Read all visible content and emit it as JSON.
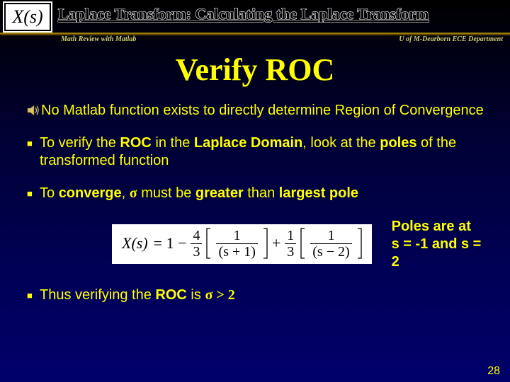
{
  "header": {
    "badge": "X(s)",
    "title": "Laplace Transform:  Calculating the Laplace Transform",
    "left_sub": "Math Review with Matlab",
    "right_sub": "U of M-Dearborn ECE Department"
  },
  "slide": {
    "title": "Verify ROC",
    "bullets": [
      {
        "icon": "sound",
        "html": "No Matlab function exists to directly determine Region of Convergence"
      },
      {
        "icon": "square",
        "html": "To verify the <b>ROC</b> in the <b>Laplace Domain</b>, look at the <b>poles</b> of the transformed function"
      },
      {
        "icon": "square",
        "html": "To <b>converge</b>, <b class='sigma'>σ</b> must be <b>greater</b> than <b>largest pole</b>"
      },
      {
        "icon": "square",
        "html": "Thus verifying the <b>ROC</b> is <b class='sigma'>σ > 2</b>"
      }
    ],
    "equation": {
      "lhs": "X(s)",
      "terms": [
        {
          "op": "= 1 −",
          "coef_num": "4",
          "coef_den": "3",
          "inner_num": "1",
          "inner_den": "(s + 1)"
        },
        {
          "op": "+",
          "coef_num": "1",
          "coef_den": "3",
          "inner_num": "1",
          "inner_den": "(s − 2)"
        }
      ]
    },
    "poles_note": [
      "Poles are at",
      "s = -1 and s = 2"
    ],
    "page_number": "28"
  },
  "colors": {
    "bg_gradient_top": "#000000",
    "bg_gradient_bottom": "#00006b",
    "accent": "#ffff00",
    "rule": "#9a7a00"
  }
}
